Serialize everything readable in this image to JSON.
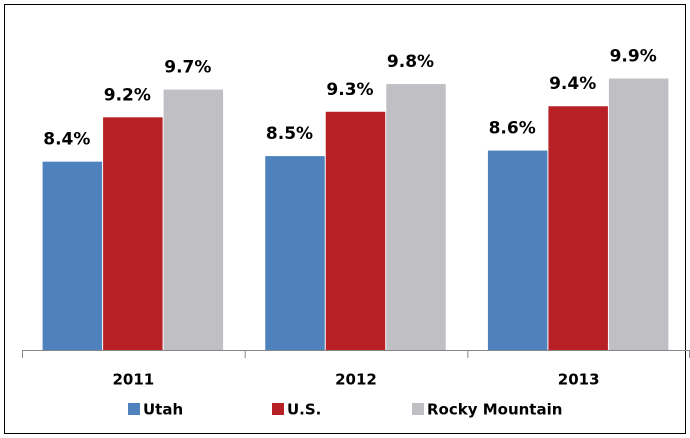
{
  "chart_data": {
    "type": "bar",
    "categories": [
      "2011",
      "2012",
      "2013"
    ],
    "series": [
      {
        "name": "Utah",
        "color": "#4f81bd",
        "values": [
          8.4,
          8.5,
          8.6
        ],
        "value_labels": [
          "8.4%",
          "8.5%",
          "8.6%"
        ]
      },
      {
        "name": "U.S.",
        "color": "#b72025",
        "values": [
          9.2,
          9.3,
          9.4
        ],
        "value_labels": [
          "9.2%",
          "9.3%",
          "9.4%"
        ]
      },
      {
        "name": "Rocky Mountain",
        "color": "#c0c0c4",
        "values": [
          9.7,
          9.8,
          9.9
        ],
        "value_labels": [
          "9.7%",
          "9.8%",
          "9.9%"
        ]
      }
    ],
    "ylim": [
      5,
      10
    ],
    "legend": "bottom"
  }
}
